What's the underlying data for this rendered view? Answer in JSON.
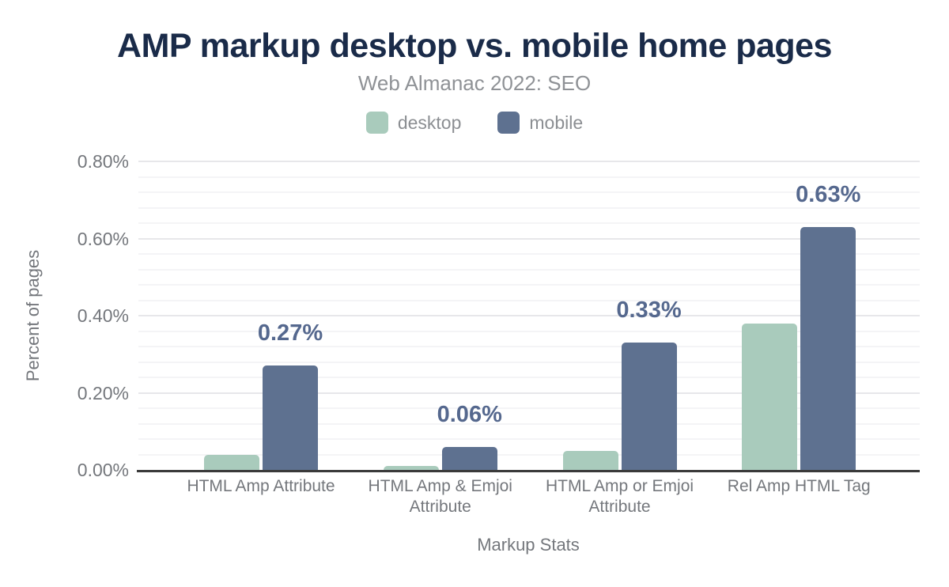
{
  "chart_data": {
    "type": "bar",
    "title": "AMP markup desktop vs. mobile home pages",
    "subtitle": "Web Almanac 2022: SEO",
    "xlabel": "Markup Stats",
    "ylabel": "Percent of pages",
    "categories": [
      "HTML Amp Attribute",
      "HTML Amp & Emjoi Attribute",
      "HTML Amp or Emjoi Attribute",
      "Rel Amp HTML Tag"
    ],
    "series": [
      {
        "name": "desktop",
        "color": "#a9cbbc",
        "values": [
          0.04,
          0.01,
          0.05,
          0.38
        ],
        "labels_shown": false
      },
      {
        "name": "mobile",
        "color": "#5e7190",
        "values": [
          0.27,
          0.06,
          0.33,
          0.63
        ],
        "labels_shown": true,
        "labels": [
          "0.27%",
          "0.06%",
          "0.33%",
          "0.63%"
        ]
      }
    ],
    "y_ticks": [
      {
        "value": 0.0,
        "label": "0.00%"
      },
      {
        "value": 0.2,
        "label": "0.20%"
      },
      {
        "value": 0.4,
        "label": "0.40%"
      },
      {
        "value": 0.6,
        "label": "0.60%"
      },
      {
        "value": 0.8,
        "label": "0.80%"
      }
    ],
    "ylim": [
      0,
      0.8
    ],
    "minor_grid_step": 0.04,
    "major_grid_step": 0.2,
    "grid": true,
    "legend_position": "top"
  },
  "colors": {
    "background": "#ffffff",
    "title": "#1a2b49",
    "subtitle": "#8f9296",
    "legend_text": "#8b8e92",
    "axis_text": "#74777c",
    "data_label": "#55688e",
    "grid_minor": "#f4f4f6",
    "grid_major": "#e7e7ea",
    "axis_line": "#3a3a3a",
    "desktop": "#a9cbbc",
    "mobile": "#5e7190"
  }
}
